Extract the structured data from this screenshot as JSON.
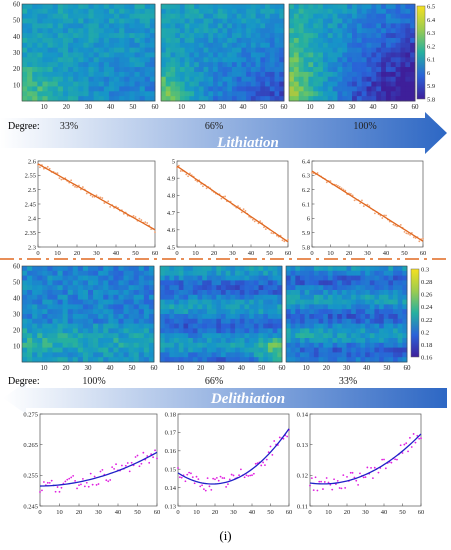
{
  "colors": {
    "lith_arrow_start": "#ffffff",
    "lith_arrow_end": "#2d67c4",
    "delith_arrow_start": "#ffffff",
    "delith_arrow_end": "#2d67c4",
    "separator": "#e06820",
    "fit_line_orange": "#e06820",
    "scatter_orange": "#f0a070",
    "fit_line_purple": "#2020c8",
    "scatter_magenta": "#e020e0",
    "colormap_low": "#3e1f9a",
    "colormap_mid": "#25b0a0",
    "colormap_high": "#f5e020"
  },
  "labels": {
    "degree_word": "Degree:",
    "lithiation": "Lithiation",
    "delithiation": "Delithiation",
    "caption": "(i)"
  },
  "chart_data": [
    {
      "type": "heatmap",
      "id": "lith_maps",
      "panels": [
        {
          "degree": "33%",
          "mean": 6.15,
          "gradient": "mild, brighter (yellow) at lower-left"
        },
        {
          "degree": "66%",
          "mean": 6.1,
          "gradient": "yellow at lower-left, dark blue at lower-right"
        },
        {
          "degree": "100%",
          "mean": 6.05,
          "gradient": "yellow at left, dark blue at right"
        }
      ],
      "x_ticks": [
        "10",
        "20",
        "30",
        "40",
        "50",
        "60"
      ],
      "y_ticks": [
        "10",
        "20",
        "30",
        "40",
        "50",
        "60"
      ],
      "colorbar": {
        "min": 5.8,
        "max": 6.5,
        "ticks": [
          "5.8",
          "5.9",
          "6",
          "6.1",
          "6.2",
          "6.3",
          "6.4",
          "6.5"
        ]
      },
      "degree_labels": [
        "33%",
        "66%",
        "100%"
      ]
    },
    {
      "type": "scatter",
      "id": "lith_profiles",
      "fit": "linear",
      "panels": [
        {
          "x": [
            0,
            60
          ],
          "fit_y": [
            2.59,
            2.36
          ],
          "ylim": [
            2.3,
            2.6
          ],
          "y_ticks": [
            "2.3",
            "2.35",
            "2.4",
            "2.45",
            "2.5",
            "2.55",
            "2.6"
          ],
          "x_ticks": [
            "0",
            "10",
            "20",
            "30",
            "40",
            "50",
            "60"
          ]
        },
        {
          "x": [
            0,
            60
          ],
          "fit_y": [
            4.97,
            4.53
          ],
          "ylim": [
            4.5,
            5.0
          ],
          "y_ticks": [
            "4.5",
            "4.6",
            "4.7",
            "4.8",
            "4.9",
            "5"
          ],
          "x_ticks": [
            "0",
            "10",
            "20",
            "30",
            "40",
            "50",
            "60"
          ]
        },
        {
          "x": [
            0,
            60
          ],
          "fit_y": [
            6.33,
            5.84
          ],
          "ylim": [
            5.8,
            6.4
          ],
          "y_ticks": [
            "5.8",
            "5.9",
            "6",
            "6.1",
            "6.2",
            "6.3",
            "6.4"
          ],
          "x_ticks": [
            "0",
            "10",
            "20",
            "30",
            "40",
            "50",
            "60"
          ]
        }
      ]
    },
    {
      "type": "heatmap",
      "id": "delith_maps",
      "panels": [
        {
          "degree": "100%",
          "gradient": "blue-green with yellow patches near bottom"
        },
        {
          "degree": "66%",
          "gradient": "mostly blue with teal, yellow at lower-right"
        },
        {
          "degree": "33%",
          "gradient": "mostly blue-teal, lighter at lower-left"
        }
      ],
      "x_ticks": [
        "10",
        "20",
        "30",
        "40",
        "50",
        "60"
      ],
      "y_ticks": [
        "10",
        "20",
        "30",
        "40",
        "50",
        "60"
      ],
      "colorbar": {
        "min": 0.16,
        "max": 0.3,
        "ticks": [
          "0.16",
          "0.18",
          "0.2",
          "0.22",
          "0.24",
          "0.26",
          "0.28",
          "0.3"
        ]
      },
      "degree_labels": [
        "100%",
        "66%",
        "33%"
      ]
    },
    {
      "type": "scatter",
      "id": "delith_profiles",
      "fit": "quadratic",
      "panels": [
        {
          "fit_points": [
            [
              0,
              0.2515
            ],
            [
              20,
              0.2525
            ],
            [
              40,
              0.2565
            ],
            [
              60,
              0.2625
            ]
          ],
          "ylim": [
            0.245,
            0.275
          ],
          "y_ticks": [
            "0.245",
            "0.255",
            "0.265",
            "0.275"
          ],
          "x_ticks": [
            "0",
            "10",
            "20",
            "30",
            "40",
            "50",
            "60"
          ]
        },
        {
          "fit_points": [
            [
              0,
              0.148
            ],
            [
              22,
              0.141
            ],
            [
              40,
              0.15
            ],
            [
              60,
              0.172
            ]
          ],
          "ylim": [
            0.13,
            0.18
          ],
          "y_ticks": [
            "0.13",
            "0.14",
            "0.15",
            "0.16",
            "0.17",
            "0.18"
          ],
          "x_ticks": [
            "0",
            "10",
            "20",
            "30",
            "40",
            "50",
            "60"
          ]
        },
        {
          "fit_points": [
            [
              0,
              0.1175
            ],
            [
              20,
              0.1185
            ],
            [
              40,
              0.1235
            ],
            [
              60,
              0.1335
            ]
          ],
          "ylim": [
            0.11,
            0.14
          ],
          "y_ticks": [
            "0.11",
            "0.12",
            "0.13",
            "0.14"
          ],
          "x_ticks": [
            "0",
            "10",
            "20",
            "30",
            "40",
            "50",
            "60"
          ]
        }
      ]
    }
  ]
}
